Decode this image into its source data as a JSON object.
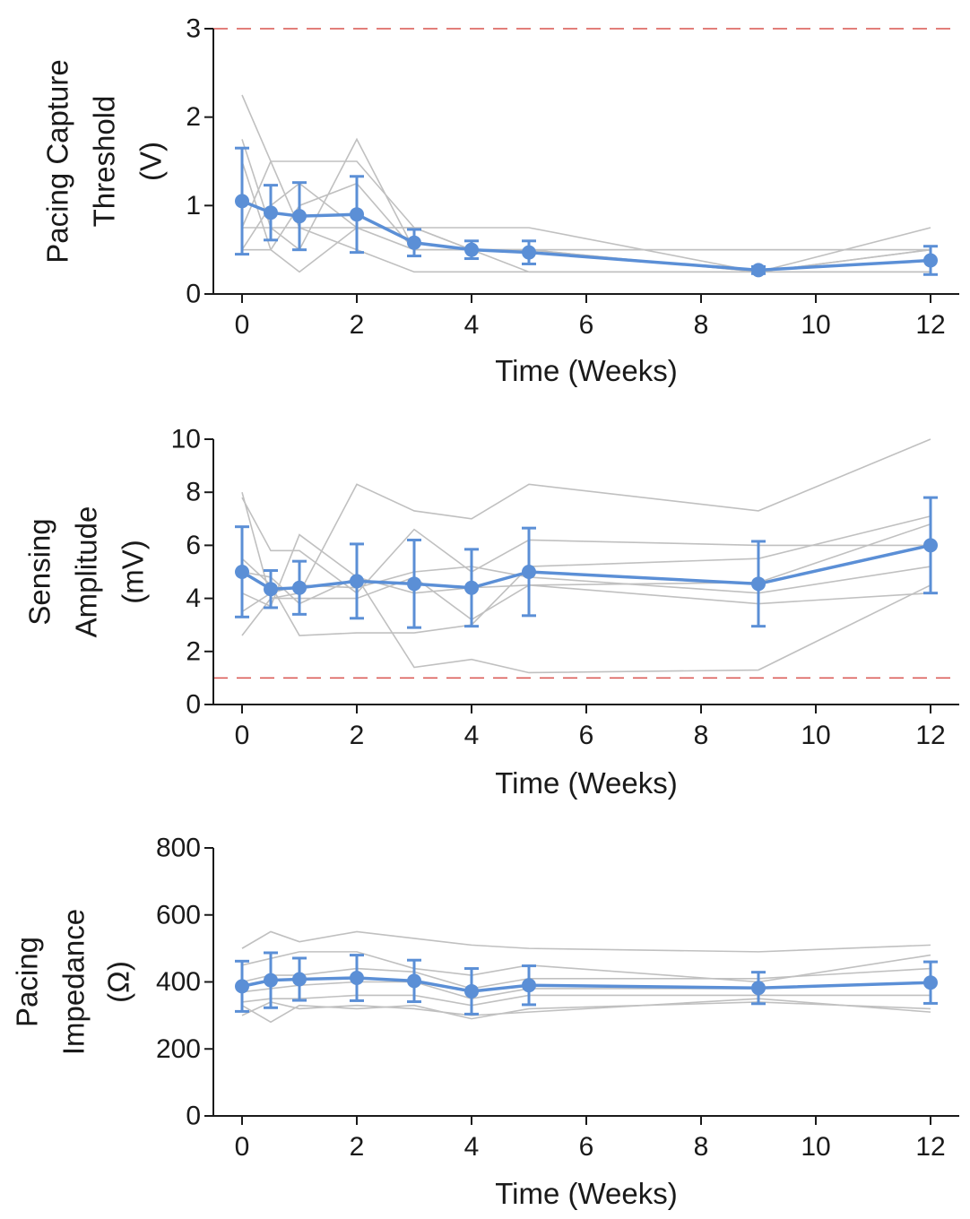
{
  "colors": {
    "mean_line": "#5b8fd6",
    "individual_lines": "#c0c0c0",
    "reference_line": "#d9534f",
    "axis": "#1a1a1a"
  },
  "chart_data": [
    {
      "type": "line",
      "ylabel_lines": [
        "Pacing Capture",
        "Threshold",
        "(V)"
      ],
      "xlabel": "Time (Weeks)",
      "xlim": [
        -0.5,
        12.5
      ],
      "ylim": [
        0,
        3
      ],
      "x_ticks": [
        0,
        2,
        4,
        6,
        8,
        10,
        12
      ],
      "y_ticks": [
        0,
        1,
        2,
        3
      ],
      "reference_line": 3,
      "series": [
        {
          "x": [
            0,
            0.5,
            1,
            2,
            3,
            4,
            5,
            9,
            12
          ],
          "values": [
            1.05,
            0.92,
            0.88,
            0.9,
            0.58,
            0.5,
            0.47,
            0.27,
            0.38
          ],
          "error": [
            0.6,
            0.31,
            0.38,
            0.43,
            0.15,
            0.1,
            0.13,
            0.04,
            0.16
          ]
        }
      ],
      "individual": [
        {
          "x": [
            0,
            0.5,
            1,
            2,
            3,
            4,
            5,
            9,
            12
          ],
          "y": [
            2.25,
            1.5,
            1.5,
            1.5,
            0.75,
            0.75,
            0.75,
            0.25,
            0.5
          ]
        },
        {
          "x": [
            0,
            0.5,
            1,
            2,
            3,
            4,
            5,
            9,
            12
          ],
          "y": [
            1.75,
            0.75,
            0.5,
            1.75,
            0.5,
            0.5,
            0.5,
            0.25,
            0.75
          ]
        },
        {
          "x": [
            0,
            0.5,
            1,
            2,
            3,
            4,
            5,
            9,
            12
          ],
          "y": [
            1.5,
            0.5,
            0.25,
            0.75,
            0.75,
            0.5,
            0.25,
            0.25,
            0.25
          ]
        },
        {
          "x": [
            0,
            0.5,
            1,
            2,
            3,
            4,
            5,
            9,
            12
          ],
          "y": [
            0.75,
            1.5,
            0.75,
            0.5,
            0.25,
            0.25,
            0.25,
            0.25,
            0.5
          ]
        },
        {
          "x": [
            0,
            0.5,
            1,
            2,
            3,
            4,
            5,
            9,
            12
          ],
          "y": [
            0.5,
            1.0,
            1.25,
            0.75,
            0.5,
            0.5,
            0.5,
            0.25,
            0.25
          ]
        },
        {
          "x": [
            0,
            0.5,
            1,
            2,
            3,
            4,
            5,
            9,
            12
          ],
          "y": [
            0.75,
            0.75,
            0.75,
            0.75,
            0.75,
            0.5,
            0.5,
            0.5,
            0.5
          ]
        },
        {
          "x": [
            0,
            0.5,
            1,
            2,
            3,
            4,
            5,
            9,
            12
          ],
          "y": [
            0.5,
            0.5,
            1.0,
            1.25,
            0.5,
            0.5,
            0.5,
            0.5,
            0.5
          ]
        }
      ]
    },
    {
      "type": "line",
      "ylabel_lines": [
        "Sensing",
        "Amplitude",
        "(mV)"
      ],
      "xlabel": "Time (Weeks)",
      "xlim": [
        -0.5,
        12.5
      ],
      "ylim": [
        0,
        10
      ],
      "x_ticks": [
        0,
        2,
        4,
        6,
        8,
        10,
        12
      ],
      "y_ticks": [
        0,
        2,
        4,
        6,
        8,
        10
      ],
      "reference_line": 1,
      "series": [
        {
          "x": [
            0,
            0.5,
            1,
            2,
            3,
            4,
            5,
            9,
            12
          ],
          "values": [
            5.0,
            4.35,
            4.4,
            4.65,
            4.55,
            4.4,
            5.0,
            4.55,
            6.0
          ],
          "error": [
            1.7,
            0.7,
            1.0,
            1.4,
            1.65,
            1.45,
            1.65,
            1.6,
            1.8
          ]
        }
      ],
      "individual": [
        {
          "x": [
            0,
            0.5,
            1,
            2,
            3,
            4,
            5,
            9,
            12
          ],
          "y": [
            8.0,
            4.0,
            4.2,
            8.3,
            7.3,
            7.0,
            8.3,
            7.3,
            10.0
          ]
        },
        {
          "x": [
            0,
            0.5,
            1,
            2,
            3,
            4,
            5,
            9,
            12
          ],
          "y": [
            7.8,
            5.8,
            5.8,
            4.2,
            6.6,
            5.0,
            6.2,
            6.0,
            6.0
          ]
        },
        {
          "x": [
            0,
            0.5,
            1,
            2,
            3,
            4,
            5,
            9,
            12
          ],
          "y": [
            5.5,
            4.5,
            2.6,
            2.7,
            2.7,
            3.0,
            5.2,
            5.5,
            7.1
          ]
        },
        {
          "x": [
            0,
            0.5,
            1,
            2,
            3,
            4,
            5,
            9,
            12
          ],
          "y": [
            4.2,
            3.7,
            6.4,
            4.8,
            1.4,
            1.7,
            1.2,
            1.3,
            4.5
          ]
        },
        {
          "x": [
            0,
            0.5,
            1,
            2,
            3,
            4,
            5,
            9,
            12
          ],
          "y": [
            2.6,
            4.0,
            4.0,
            4.0,
            4.8,
            3.2,
            4.5,
            3.8,
            4.2
          ]
        },
        {
          "x": [
            0,
            0.5,
            1,
            2,
            3,
            4,
            5,
            9,
            12
          ],
          "y": [
            3.5,
            4.2,
            4.5,
            4.4,
            5.0,
            5.2,
            4.8,
            4.2,
            5.2
          ]
        },
        {
          "x": [
            0,
            0.5,
            1,
            2,
            3,
            4,
            5,
            9,
            12
          ],
          "y": [
            5.0,
            4.8,
            3.8,
            4.8,
            4.2,
            4.4,
            4.5,
            4.6,
            6.8
          ]
        }
      ]
    },
    {
      "type": "line",
      "ylabel_lines": [
        "Pacing",
        "Impedance",
        "(Ω)"
      ],
      "xlabel": "Time (Weeks)",
      "xlim": [
        -0.5,
        12.5
      ],
      "ylim": [
        0,
        800
      ],
      "x_ticks": [
        0,
        2,
        4,
        6,
        8,
        10,
        12
      ],
      "y_ticks": [
        0,
        200,
        400,
        600,
        800
      ],
      "series": [
        {
          "x": [
            0,
            0.5,
            1,
            2,
            3,
            4,
            5,
            9,
            12
          ],
          "values": [
            387,
            405,
            408,
            412,
            403,
            372,
            390,
            382,
            398
          ],
          "error": [
            75,
            82,
            63,
            68,
            62,
            68,
            58,
            47,
            62
          ]
        }
      ],
      "individual": [
        {
          "x": [
            0,
            0.5,
            1,
            2,
            3,
            4,
            5,
            9,
            12
          ],
          "y": [
            500,
            550,
            520,
            550,
            530,
            510,
            500,
            490,
            510
          ]
        },
        {
          "x": [
            0,
            0.5,
            1,
            2,
            3,
            4,
            5,
            9,
            12
          ],
          "y": [
            450,
            470,
            490,
            490,
            440,
            420,
            450,
            400,
            480
          ]
        },
        {
          "x": [
            0,
            0.5,
            1,
            2,
            3,
            4,
            5,
            9,
            12
          ],
          "y": [
            400,
            420,
            420,
            440,
            430,
            380,
            410,
            410,
            440
          ]
        },
        {
          "x": [
            0,
            0.5,
            1,
            2,
            3,
            4,
            5,
            9,
            12
          ],
          "y": [
            370,
            380,
            390,
            400,
            400,
            350,
            380,
            380,
            400
          ]
        },
        {
          "x": [
            0,
            0.5,
            1,
            2,
            3,
            4,
            5,
            9,
            12
          ],
          "y": [
            340,
            350,
            350,
            360,
            360,
            330,
            360,
            360,
            360
          ]
        },
        {
          "x": [
            0,
            0.5,
            1,
            2,
            3,
            4,
            5,
            9,
            12
          ],
          "y": [
            330,
            280,
            330,
            320,
            330,
            290,
            320,
            340,
            320
          ]
        },
        {
          "x": [
            0,
            0.5,
            1,
            2,
            3,
            4,
            5,
            9,
            12
          ],
          "y": [
            300,
            340,
            320,
            330,
            320,
            300,
            310,
            350,
            310
          ]
        }
      ]
    }
  ]
}
